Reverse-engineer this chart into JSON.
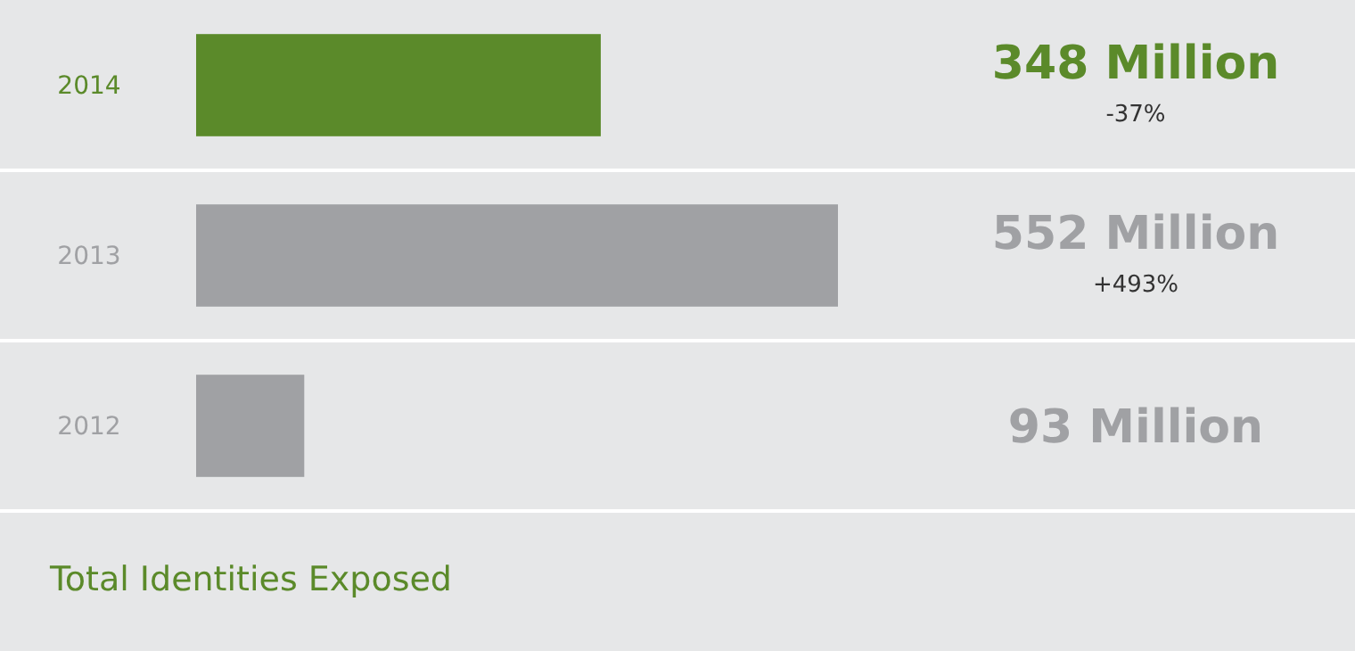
{
  "chart_data": {
    "type": "bar",
    "orientation": "horizontal",
    "title": "Total Identities Exposed",
    "categories": [
      "2014",
      "2013",
      "2012"
    ],
    "values": [
      348,
      552,
      93
    ],
    "colors": [
      "#5b8a2a",
      "#a0a1a4",
      "#a0a1a4"
    ],
    "value_labels": [
      "348 Million",
      "552 Million",
      "93 Million"
    ],
    "annotations": [
      "-37%",
      "+493%"
    ],
    "xlim": [
      0,
      552
    ],
    "tick_labels": "y"
  }
}
